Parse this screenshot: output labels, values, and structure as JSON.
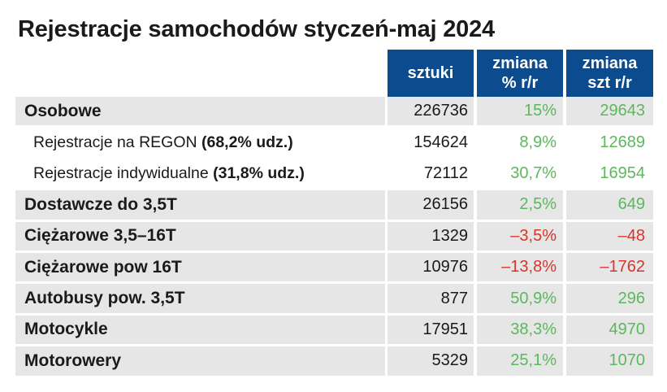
{
  "title": "Rejestracje samochodów styczeń-maj 2024",
  "headers": {
    "sztuki": "sztuki",
    "zmiana_proc_1": "zmiana",
    "zmiana_proc_2": "% r/r",
    "zmiana_szt_1": "zmiana",
    "zmiana_szt_2": "szt r/r"
  },
  "colors": {
    "header_bg": "#0d4b8f",
    "row_bg": "#e6e6e6",
    "positive": "#5cb85c",
    "negative": "#d9342b"
  },
  "rows": [
    {
      "label": "Osobowe",
      "label_note": "",
      "sztuki": "226736",
      "zmiana_proc": "15%",
      "zmiana_szt": "29643",
      "sign": "pos"
    },
    {
      "label": "Rejestracje na REGON ",
      "label_note": "(68,2% udz.)",
      "sztuki": "154624",
      "zmiana_proc": "8,9%",
      "zmiana_szt": "12689",
      "sign": "pos"
    },
    {
      "label": "Rejestracje indywidualne ",
      "label_note": "(31,8% udz.)",
      "sztuki": "72112",
      "zmiana_proc": "30,7%",
      "zmiana_szt": "16954",
      "sign": "pos"
    },
    {
      "label": "Dostawcze do 3,5T",
      "label_note": "",
      "sztuki": "26156",
      "zmiana_proc": "2,5%",
      "zmiana_szt": "649",
      "sign": "pos"
    },
    {
      "label": "Ciężarowe 3,5–16T",
      "label_note": "",
      "sztuki": "1329",
      "zmiana_proc": "–3,5%",
      "zmiana_szt": "–48",
      "sign": "neg"
    },
    {
      "label": "Ciężarowe pow 16T",
      "label_note": "",
      "sztuki": "10976",
      "zmiana_proc": "–13,8%",
      "zmiana_szt": "–1762",
      "sign": "neg"
    },
    {
      "label": "Autobusy pow. 3,5T",
      "label_note": "",
      "sztuki": "877",
      "zmiana_proc": "50,9%",
      "zmiana_szt": "296",
      "sign": "pos"
    },
    {
      "label": "Motocykle",
      "label_note": "",
      "sztuki": "17951",
      "zmiana_proc": "38,3%",
      "zmiana_szt": "4970",
      "sign": "pos"
    },
    {
      "label": "Motorowery",
      "label_note": "",
      "sztuki": "5329",
      "zmiana_proc": "25,1%",
      "zmiana_szt": "1070",
      "sign": "pos"
    }
  ]
}
